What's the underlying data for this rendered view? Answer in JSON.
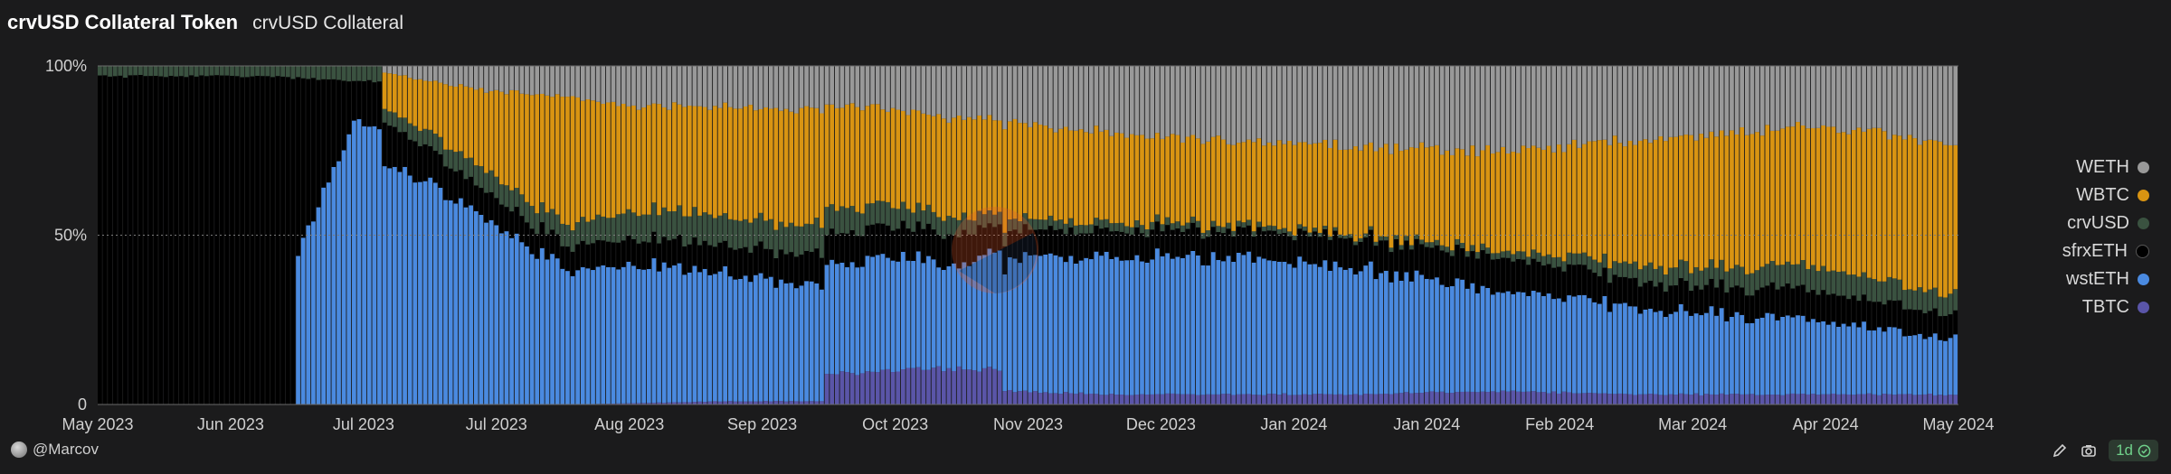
{
  "header": {
    "title": "crvUSD Collateral Token",
    "subtitle": "crvUSD Collateral"
  },
  "footer": {
    "author": "@Marcov",
    "interval": "1d"
  },
  "chart_data": {
    "type": "bar",
    "stacked": true,
    "normalized": "100%",
    "x_start": "2023-05-01",
    "x_end": "2024-05-01",
    "x_tick_labels": [
      "May 2023",
      "Jun 2023",
      "Jul 2023",
      "Jul 2023",
      "Aug 2023",
      "Sep 2023",
      "Oct 2023",
      "Nov 2023",
      "Dec 2023",
      "Jan 2024",
      "Jan 2024",
      "Feb 2024",
      "Mar 2024",
      "Apr 2024",
      "May 2024"
    ],
    "y_tick_labels": [
      "100%",
      "50%",
      "0"
    ],
    "ylim": [
      0,
      100
    ],
    "legend_position": "right",
    "series_stack_order": [
      "TBTC",
      "wstETH",
      "sfrxETH",
      "crvUSD",
      "WBTC",
      "WETH"
    ],
    "series": [
      {
        "name": "WETH",
        "color": "#999999",
        "anchors": [
          [
            "2023-05-01",
            0
          ],
          [
            "2023-06-25",
            0
          ],
          [
            "2023-06-26",
            2
          ],
          [
            "2023-07-15",
            7
          ],
          [
            "2023-08-15",
            13
          ],
          [
            "2023-10-01",
            13
          ],
          [
            "2023-11-01",
            18
          ],
          [
            "2023-12-01",
            22
          ],
          [
            "2024-01-01",
            24
          ],
          [
            "2024-02-01",
            25
          ],
          [
            "2024-03-01",
            22
          ],
          [
            "2024-04-01",
            18
          ],
          [
            "2024-05-01",
            23
          ]
        ]
      },
      {
        "name": "WBTC",
        "color": "#d99412",
        "anchors": [
          [
            "2023-05-01",
            0
          ],
          [
            "2023-06-25",
            0
          ],
          [
            "2023-06-26",
            10
          ],
          [
            "2023-07-15",
            22
          ],
          [
            "2023-08-01",
            42
          ],
          [
            "2023-08-15",
            34
          ],
          [
            "2023-09-01",
            34
          ],
          [
            "2023-09-15",
            36
          ],
          [
            "2023-10-01",
            30
          ],
          [
            "2023-11-01",
            28
          ],
          [
            "2023-12-01",
            25
          ],
          [
            "2024-01-01",
            26
          ],
          [
            "2024-02-01",
            30
          ],
          [
            "2024-03-01",
            38
          ],
          [
            "2024-04-01",
            42
          ],
          [
            "2024-05-01",
            45
          ]
        ]
      },
      {
        "name": "crvUSD",
        "color": "#3a5240",
        "anchors": [
          [
            "2023-05-01",
            3
          ],
          [
            "2023-06-01",
            3
          ],
          [
            "2023-06-26",
            4
          ],
          [
            "2023-07-15",
            6
          ],
          [
            "2023-08-01",
            7
          ],
          [
            "2023-08-15",
            9
          ],
          [
            "2023-09-15",
            9
          ],
          [
            "2023-10-01",
            7
          ],
          [
            "2023-11-01",
            3
          ],
          [
            "2023-12-01",
            2
          ],
          [
            "2024-01-01",
            1
          ],
          [
            "2024-02-01",
            2
          ],
          [
            "2024-03-01",
            5
          ],
          [
            "2024-04-01",
            7
          ],
          [
            "2024-05-01",
            6
          ]
        ]
      },
      {
        "name": "sfrxETH",
        "color": "#000000",
        "anchors": [
          [
            "2023-05-01",
            97
          ],
          [
            "2023-06-01",
            95
          ],
          [
            "2023-06-08",
            94
          ],
          [
            "2023-06-09",
            50
          ],
          [
            "2023-06-20",
            10
          ],
          [
            "2023-06-26",
            12
          ],
          [
            "2023-07-15",
            8
          ],
          [
            "2023-08-01",
            8
          ],
          [
            "2023-09-01",
            9
          ],
          [
            "2023-10-01",
            10
          ],
          [
            "2023-11-01",
            8
          ],
          [
            "2023-12-01",
            8
          ],
          [
            "2024-01-01",
            9
          ],
          [
            "2024-02-01",
            10
          ],
          [
            "2024-03-01",
            8
          ],
          [
            "2024-04-01",
            9
          ],
          [
            "2024-05-01",
            7
          ]
        ]
      },
      {
        "name": "wstETH",
        "color": "#4a8ae0",
        "anchors": [
          [
            "2023-05-01",
            0
          ],
          [
            "2023-06-08",
            0
          ],
          [
            "2023-06-09",
            45
          ],
          [
            "2023-06-20",
            72
          ],
          [
            "2023-06-26",
            70
          ],
          [
            "2023-07-15",
            56
          ],
          [
            "2023-08-01",
            43
          ],
          [
            "2023-08-15",
            44
          ],
          [
            "2023-09-01",
            41
          ],
          [
            "2023-09-15",
            34
          ],
          [
            "2023-10-01",
            36
          ],
          [
            "2023-10-15",
            30
          ],
          [
            "2023-11-01",
            40
          ],
          [
            "2023-12-01",
            42
          ],
          [
            "2024-01-01",
            38
          ],
          [
            "2024-02-01",
            30
          ],
          [
            "2024-03-01",
            25
          ],
          [
            "2024-04-01",
            22
          ],
          [
            "2024-05-01",
            17
          ]
        ]
      },
      {
        "name": "TBTC",
        "color": "#5a55a8",
        "anchors": [
          [
            "2023-05-01",
            0
          ],
          [
            "2023-08-01",
            0
          ],
          [
            "2023-09-01",
            1
          ],
          [
            "2023-09-20",
            1
          ],
          [
            "2023-09-21",
            10
          ],
          [
            "2023-10-25",
            11
          ],
          [
            "2023-10-26",
            4
          ],
          [
            "2023-11-15",
            3
          ],
          [
            "2024-01-01",
            3
          ],
          [
            "2024-02-01",
            4
          ],
          [
            "2024-03-01",
            3
          ],
          [
            "2024-05-01",
            3
          ]
        ]
      }
    ]
  }
}
